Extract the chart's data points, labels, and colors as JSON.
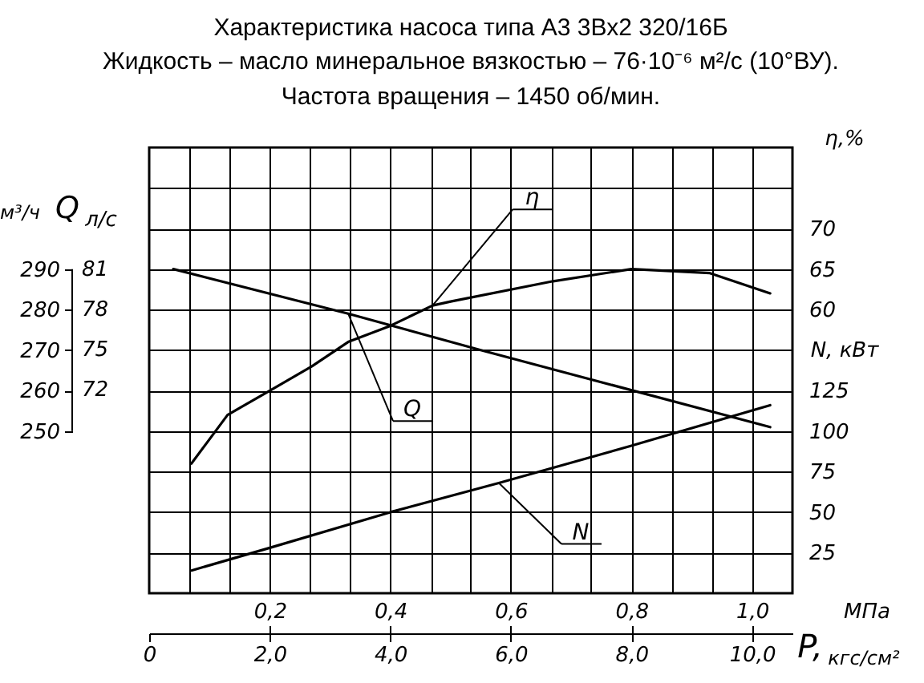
{
  "chart_data": {
    "type": "line",
    "title": "Характеристика насоса типа А3 3Вх2 320/16Б",
    "subtitle": "Жидкость – масло минеральное вязкостью – 76·10⁻⁶ м²/с (10°ВУ).\nЧастота вращения – 1450 об/мин.",
    "xlabel": "МПа",
    "x2label": "кгс/см²",
    "ylabel": "м³/ч",
    "y2label": "η,%",
    "y3label": "N, кВт",
    "annotations": [
      "Q",
      "P,",
      "л/с",
      "81",
      "78",
      "75",
      "72"
    ],
    "xlim": [
      0,
      1.067
    ],
    "xticks": [
      {
        "value": 0.067,
        "label": null
      },
      {
        "value": 0.133,
        "label": null
      },
      {
        "value": 0.2,
        "label": "0,2"
      },
      {
        "value": 0.267,
        "label": null
      },
      {
        "value": 0.333,
        "label": null
      },
      {
        "value": 0.4,
        "label": "0,4"
      },
      {
        "value": 0.467,
        "label": null
      },
      {
        "value": 0.533,
        "label": null
      },
      {
        "value": 0.6,
        "label": "0,6"
      },
      {
        "value": 0.667,
        "label": null
      },
      {
        "value": 0.733,
        "label": null
      },
      {
        "value": 0.8,
        "label": "0,8"
      },
      {
        "value": 0.867,
        "label": null
      },
      {
        "value": 0.933,
        "label": null
      },
      {
        "value": 1.0,
        "label": "1,0"
      }
    ],
    "x2lim": [
      0,
      10.67
    ],
    "x2ticks": [
      0,
      {
        "value": 2,
        "label": "2,0"
      },
      {
        "value": 4,
        "label": "4,0"
      },
      {
        "value": 6,
        "label": "6,0"
      },
      {
        "value": 8,
        "label": "8,0"
      },
      {
        "value": 10,
        "label": "10,0"
      }
    ],
    "ylim": [
      210,
      320
    ],
    "yticks": [
      250,
      260,
      270,
      280,
      290
    ],
    "y2lim": [
      25,
      80
    ],
    "y2ticks": [
      {
        "value": 35,
        "label": null
      },
      {
        "value": 40,
        "label": null
      },
      {
        "value": 45,
        "label": null
      },
      {
        "value": 50,
        "label": null
      },
      {
        "value": 55,
        "label": null
      },
      60,
      65,
      70,
      {
        "value": 75,
        "label": null
      }
    ],
    "y3lim": [
      0,
      275
    ],
    "y3ticks": [
      25,
      50,
      75,
      100,
      125
    ],
    "grid": true,
    "series": [
      {
        "name": "Q",
        "color": "#000000",
        "axis": "y",
        "x": [
          0.04,
          0.33,
          0.55,
          1.03
        ],
        "values": [
          290,
          279,
          270,
          251
        ]
      },
      {
        "name": "η",
        "color": "#000000",
        "axis": "y2",
        "x": [
          0.07,
          0.13,
          0.2,
          0.27,
          0.33,
          0.4,
          0.47,
          0.5,
          0.67,
          0.8,
          0.93,
          1.03
        ],
        "values": [
          41,
          47,
          50,
          53,
          56,
          58,
          60.5,
          61,
          63.5,
          65,
          64.5,
          62
        ]
      },
      {
        "name": "N",
        "color": "#000000",
        "axis": "y3",
        "x": [
          0.07,
          0.2,
          0.4,
          0.58,
          0.8,
          1.03
        ],
        "values": [
          14,
          28,
          50,
          68,
          91,
          116
        ]
      }
    ]
  }
}
